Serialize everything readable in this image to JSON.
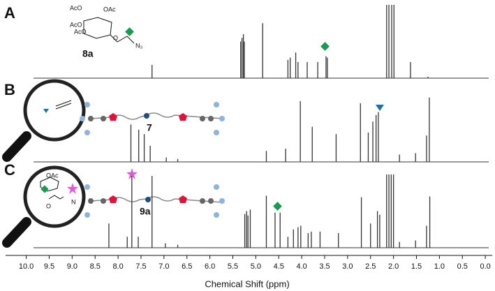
{
  "chart_data": {
    "type": "stick",
    "x_label": "Chemical Shift (ppm)",
    "xlim": [
      10.45,
      -0.15
    ],
    "xticks": [
      {
        "value": 10,
        "label": "10.0"
      },
      {
        "value": 9.5,
        "label": "9.5"
      },
      {
        "value": 9,
        "label": "9.0"
      },
      {
        "value": 8.5,
        "label": "8.5"
      },
      {
        "value": 8,
        "label": "8.0"
      },
      {
        "value": 7.5,
        "label": "7.5"
      },
      {
        "value": 7,
        "label": "7.0"
      },
      {
        "value": 6.5,
        "label": "6.5"
      },
      {
        "value": 6,
        "label": "6.0"
      },
      {
        "value": 5.5,
        "label": "5.5"
      },
      {
        "value": 5,
        "label": "5.0"
      },
      {
        "value": 4.5,
        "label": "4.5"
      },
      {
        "value": 4,
        "label": "4.0"
      },
      {
        "value": 3.5,
        "label": "3.5"
      },
      {
        "value": 3,
        "label": "3.0"
      },
      {
        "value": 2.5,
        "label": "2.5"
      },
      {
        "value": 2,
        "label": "2.0"
      },
      {
        "value": 1.5,
        "label": "1.5"
      },
      {
        "value": 1,
        "label": "1.0"
      },
      {
        "value": 0.5,
        "label": "0.5"
      },
      {
        "value": 0,
        "label": "0.0"
      }
    ],
    "ylim": [
      0,
      100
    ],
    "series": [
      {
        "name": "A",
        "color": "#333333",
        "compound": "8a",
        "x": [
          7.26,
          5.33,
          5.3,
          5.27,
          5.25,
          4.85,
          4.3,
          4.25,
          4.13,
          4.08,
          3.88,
          3.65,
          3.47,
          3.44,
          2.15,
          2.1,
          2.04,
          1.99,
          1.63,
          1.25
        ],
        "values": [
          18,
          50,
          55,
          60,
          50,
          75,
          25,
          28,
          35,
          22,
          22,
          22,
          30,
          28,
          100,
          100,
          100,
          100,
          22,
          2
        ]
      },
      {
        "name": "B",
        "color": "#333333",
        "compound": "7",
        "x": [
          7.72,
          7.55,
          7.43,
          7.3,
          6.95,
          6.7,
          4.77,
          4.35,
          4.03,
          3.77,
          3.25,
          2.72,
          2.55,
          2.45,
          2.38,
          2.33,
          1.87,
          1.52,
          1.28,
          1.22
        ],
        "values": [
          51,
          44,
          38,
          22,
          6,
          4,
          15,
          18,
          83,
          48,
          38,
          80,
          40,
          55,
          64,
          68,
          10,
          12,
          36,
          88
        ]
      },
      {
        "name": "C",
        "color": "#333333",
        "compound": "9a",
        "x": [
          8.2,
          7.8,
          7.7,
          7.56,
          7.26,
          6.97,
          6.7,
          5.24,
          5.2,
          5.17,
          5.12,
          4.77,
          4.58,
          4.47,
          4.3,
          4.18,
          4.08,
          4.02,
          3.86,
          3.79,
          3.6,
          3.2,
          2.7,
          2.5,
          2.35,
          2.3,
          2.15,
          2.1,
          2.05,
          2.0,
          1.87,
          1.52,
          1.28,
          1.21
        ],
        "values": [
          33,
          15,
          98,
          15,
          98,
          6,
          4,
          46,
          50,
          44,
          52,
          71,
          48,
          48,
          15,
          25,
          28,
          30,
          20,
          22,
          22,
          20,
          69,
          33,
          50,
          45,
          100,
          100,
          100,
          100,
          8,
          10,
          30,
          70
        ]
      }
    ],
    "structure_text": [
      "AcO",
      "OAc",
      "AcO",
      "AcO",
      "O",
      "N₃",
      "OAc",
      "O",
      "N"
    ]
  }
}
